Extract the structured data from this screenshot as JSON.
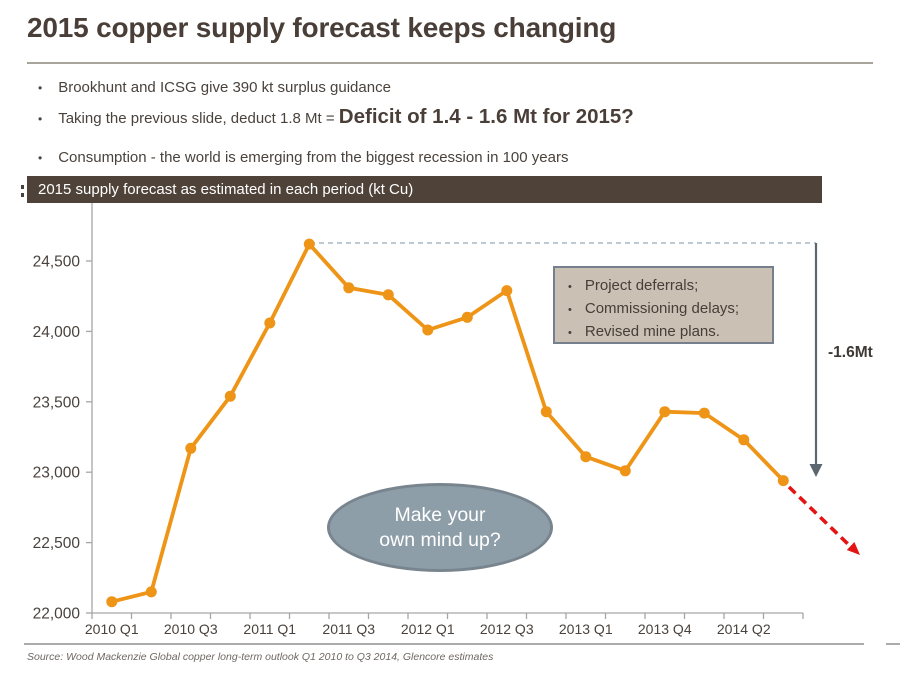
{
  "slide": {
    "title": "2015 copper supply forecast keeps changing",
    "bullets": [
      {
        "text": "Brookhunt and ICSG give 390 kt surplus guidance",
        "emphasis": ""
      },
      {
        "text": "Taking the previous slide, deduct 1.8 Mt = ",
        "emphasis": "Deficit of 1.4 - 1.6 Mt for 2015?"
      },
      {
        "text": "Consumption - the world is emerging from the biggest recession in 100 years",
        "emphasis": ""
      }
    ],
    "source": "Source: Wood Mackenzie Global copper long-term outlook Q1 2010 to Q3 2014, Glencore estimates"
  },
  "chart_header": "2015 supply forecast as estimated in each period (kt Cu)",
  "annotations": {
    "callout_items": [
      "Project deferrals;",
      "Commissioning delays;",
      "Revised mine plans."
    ],
    "ellipse_lines": [
      "Make your",
      "own mind up?"
    ],
    "delta_label": "-1.6Mt"
  },
  "chart_data": {
    "type": "line",
    "title": "2015 supply forecast as estimated in each period (kt Cu)",
    "unit": "kt Cu",
    "categories": [
      "2010 Q1",
      "2010 Q2",
      "2010 Q3",
      "2010 Q4",
      "2011 Q1",
      "2011 Q2",
      "2011 Q3",
      "2011 Q4",
      "2012 Q1",
      "2012 Q2",
      "2012 Q3",
      "2012 Q4",
      "2013 Q1",
      "2013 Q2",
      "2013 Q4",
      "2014 Q1",
      "2014 Q2",
      "2014 Q3"
    ],
    "values": [
      22080,
      22150,
      23170,
      23540,
      24060,
      24620,
      24310,
      24260,
      24010,
      24100,
      24290,
      23430,
      23110,
      23010,
      23430,
      23420,
      23230,
      22940
    ],
    "x_tick_label_indices": [
      0,
      2,
      4,
      6,
      8,
      10,
      12,
      14,
      16
    ],
    "y_ticks": [
      {
        "value": 22000,
        "label": "22,000"
      },
      {
        "value": 22500,
        "label": "22,500"
      },
      {
        "value": 23000,
        "label": "23,000"
      },
      {
        "value": 23500,
        "label": "23,500"
      },
      {
        "value": 24000,
        "label": "24,000"
      },
      {
        "value": 24500,
        "label": "24,500"
      }
    ],
    "ylim": [
      22000,
      24700
    ],
    "xlabel": "",
    "ylabel": "",
    "grid": false,
    "legend": "none"
  },
  "colors": {
    "accent_orange": "#EE9416",
    "header_bar": "#4F4239",
    "title_text": "#4A3F38",
    "body_text": "#4A423C",
    "axis_gray": "#A6A6A6",
    "dashline_gray_blue": "#A8B7C2",
    "drop_arrow_slate": "#5B6770",
    "trend_arrow_red": "#E41414",
    "callout_bg": "#CBC0B4",
    "callout_border": "#75808C",
    "ellipse_bg": "#8E9EA9",
    "ellipse_border": "#78848E",
    "source_text": "#6E6862"
  }
}
